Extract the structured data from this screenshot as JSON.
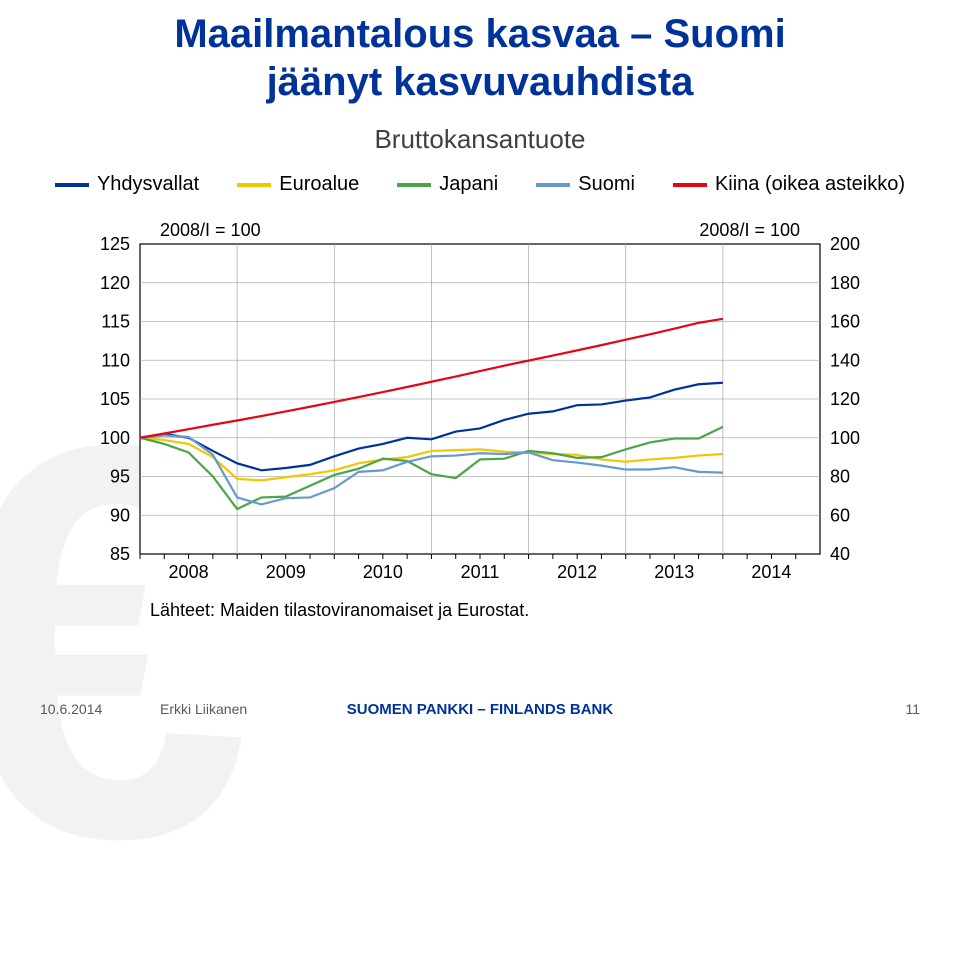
{
  "title_line1": "Maailmantalous kasvaa – Suomi",
  "title_line2": "jäänyt kasvuvauhdista",
  "subtitle": "Bruttokansantuote",
  "legend": [
    {
      "label": "Yhdysvallat",
      "color": "#003399"
    },
    {
      "label": "Euroalue",
      "color": "#f2c600"
    },
    {
      "label": "Japani",
      "color": "#4aa54a"
    },
    {
      "label": "Suomi",
      "color": "#6699cc"
    },
    {
      "label": "Kiina (oikea asteikko)",
      "color": "#e30613"
    }
  ],
  "annotations": {
    "left_note": "2008/I = 100",
    "right_note": "2008/I = 100"
  },
  "chart": {
    "type": "line",
    "left_axis": {
      "min": 85,
      "max": 125,
      "step": 5
    },
    "right_axis": {
      "min": 40,
      "max": 200,
      "step": 20
    },
    "x_axis": {
      "min": 2008,
      "max": 2015,
      "labels": [
        2008,
        2009,
        2010,
        2011,
        2012,
        2013,
        2014
      ]
    },
    "background_color": "#ffffff",
    "grid_color": "#b0b0b0",
    "axis_color": "#000000",
    "line_width": 2.2,
    "font_size_axis": 18,
    "font_family": "Arial",
    "series": [
      {
        "name": "Yhdysvallat",
        "axis": "left",
        "color": "#003399",
        "x": [
          2008.0,
          2008.25,
          2008.5,
          2008.75,
          2009.0,
          2009.25,
          2009.5,
          2009.75,
          2010.0,
          2010.25,
          2010.5,
          2010.75,
          2011.0,
          2011.25,
          2011.5,
          2011.75,
          2012.0,
          2012.25,
          2012.5,
          2012.75,
          2013.0,
          2013.25,
          2013.5,
          2013.75,
          2014.0
        ],
        "y": [
          100.0,
          100.5,
          100.0,
          98.3,
          96.7,
          95.8,
          96.1,
          96.5,
          97.6,
          98.6,
          99.2,
          100.0,
          99.8,
          100.8,
          101.2,
          102.3,
          103.1,
          103.4,
          104.2,
          104.3,
          104.8,
          105.2,
          106.2,
          106.9,
          107.1
        ]
      },
      {
        "name": "Euroalue",
        "axis": "left",
        "color": "#f2c600",
        "x": [
          2008.0,
          2008.25,
          2008.5,
          2008.75,
          2009.0,
          2009.25,
          2009.5,
          2009.75,
          2010.0,
          2010.25,
          2010.5,
          2010.75,
          2011.0,
          2011.25,
          2011.5,
          2011.75,
          2012.0,
          2012.25,
          2012.5,
          2012.75,
          2013.0,
          2013.25,
          2013.5,
          2013.75,
          2014.0
        ],
        "y": [
          100.0,
          99.7,
          99.2,
          97.5,
          94.7,
          94.5,
          94.9,
          95.3,
          95.8,
          96.7,
          97.2,
          97.5,
          98.3,
          98.4,
          98.5,
          98.2,
          98.1,
          97.9,
          97.8,
          97.2,
          96.9,
          97.2,
          97.4,
          97.7,
          97.9
        ]
      },
      {
        "name": "Japani",
        "axis": "left",
        "color": "#4aa54a",
        "x": [
          2008.0,
          2008.25,
          2008.5,
          2008.75,
          2009.0,
          2009.25,
          2009.5,
          2009.75,
          2010.0,
          2010.25,
          2010.5,
          2010.75,
          2011.0,
          2011.25,
          2011.5,
          2011.75,
          2012.0,
          2012.25,
          2012.5,
          2012.75,
          2013.0,
          2013.25,
          2013.5,
          2013.75,
          2014.0
        ],
        "y": [
          100.0,
          99.2,
          98.1,
          95.0,
          90.8,
          92.3,
          92.4,
          93.8,
          95.2,
          96.0,
          97.3,
          97.0,
          95.3,
          94.8,
          97.2,
          97.3,
          98.3,
          98.0,
          97.4,
          97.5,
          98.5,
          99.4,
          99.9,
          99.9,
          101.4
        ]
      },
      {
        "name": "Suomi",
        "axis": "left",
        "color": "#6699cc",
        "x": [
          2008.0,
          2008.25,
          2008.5,
          2008.75,
          2009.0,
          2009.25,
          2009.5,
          2009.75,
          2010.0,
          2010.25,
          2010.5,
          2010.75,
          2011.0,
          2011.25,
          2011.5,
          2011.75,
          2012.0,
          2012.25,
          2012.5,
          2012.75,
          2013.0,
          2013.25,
          2013.5,
          2013.75,
          2014.0
        ],
        "y": [
          100.0,
          100.3,
          100.1,
          97.8,
          92.3,
          91.4,
          92.2,
          92.3,
          93.5,
          95.6,
          95.8,
          96.9,
          97.6,
          97.7,
          98.0,
          97.9,
          98.1,
          97.1,
          96.8,
          96.4,
          95.9,
          95.9,
          96.2,
          95.6,
          95.5
        ]
      },
      {
        "name": "Kiina",
        "axis": "right",
        "color": "#e30613",
        "x": [
          2008.0,
          2008.25,
          2008.5,
          2008.75,
          2009.0,
          2009.25,
          2009.5,
          2009.75,
          2010.0,
          2010.25,
          2010.5,
          2010.75,
          2011.0,
          2011.25,
          2011.5,
          2011.75,
          2012.0,
          2012.25,
          2012.5,
          2012.75,
          2013.0,
          2013.25,
          2013.5,
          2013.75,
          2014.0
        ],
        "y": [
          100,
          102.2,
          104.4,
          106.7,
          108.9,
          111.2,
          113.6,
          116,
          118.5,
          121,
          123.6,
          126.2,
          128.9,
          131.6,
          134.4,
          137.2,
          139.8,
          142.4,
          145.1,
          147.8,
          150.6,
          153.4,
          156.3,
          159.3,
          161.4
        ]
      }
    ]
  },
  "source": "Lähteet: Maiden tilastoviranomaiset ja Eurostat.",
  "footer": {
    "date": "10.6.2014",
    "author": "Erkki Liikanen",
    "bank": "SUOMEN PANKKI – FINLANDS BANK",
    "page": "11"
  },
  "colors": {
    "title": "#003399",
    "bg_euro": "#f2f2f2"
  }
}
